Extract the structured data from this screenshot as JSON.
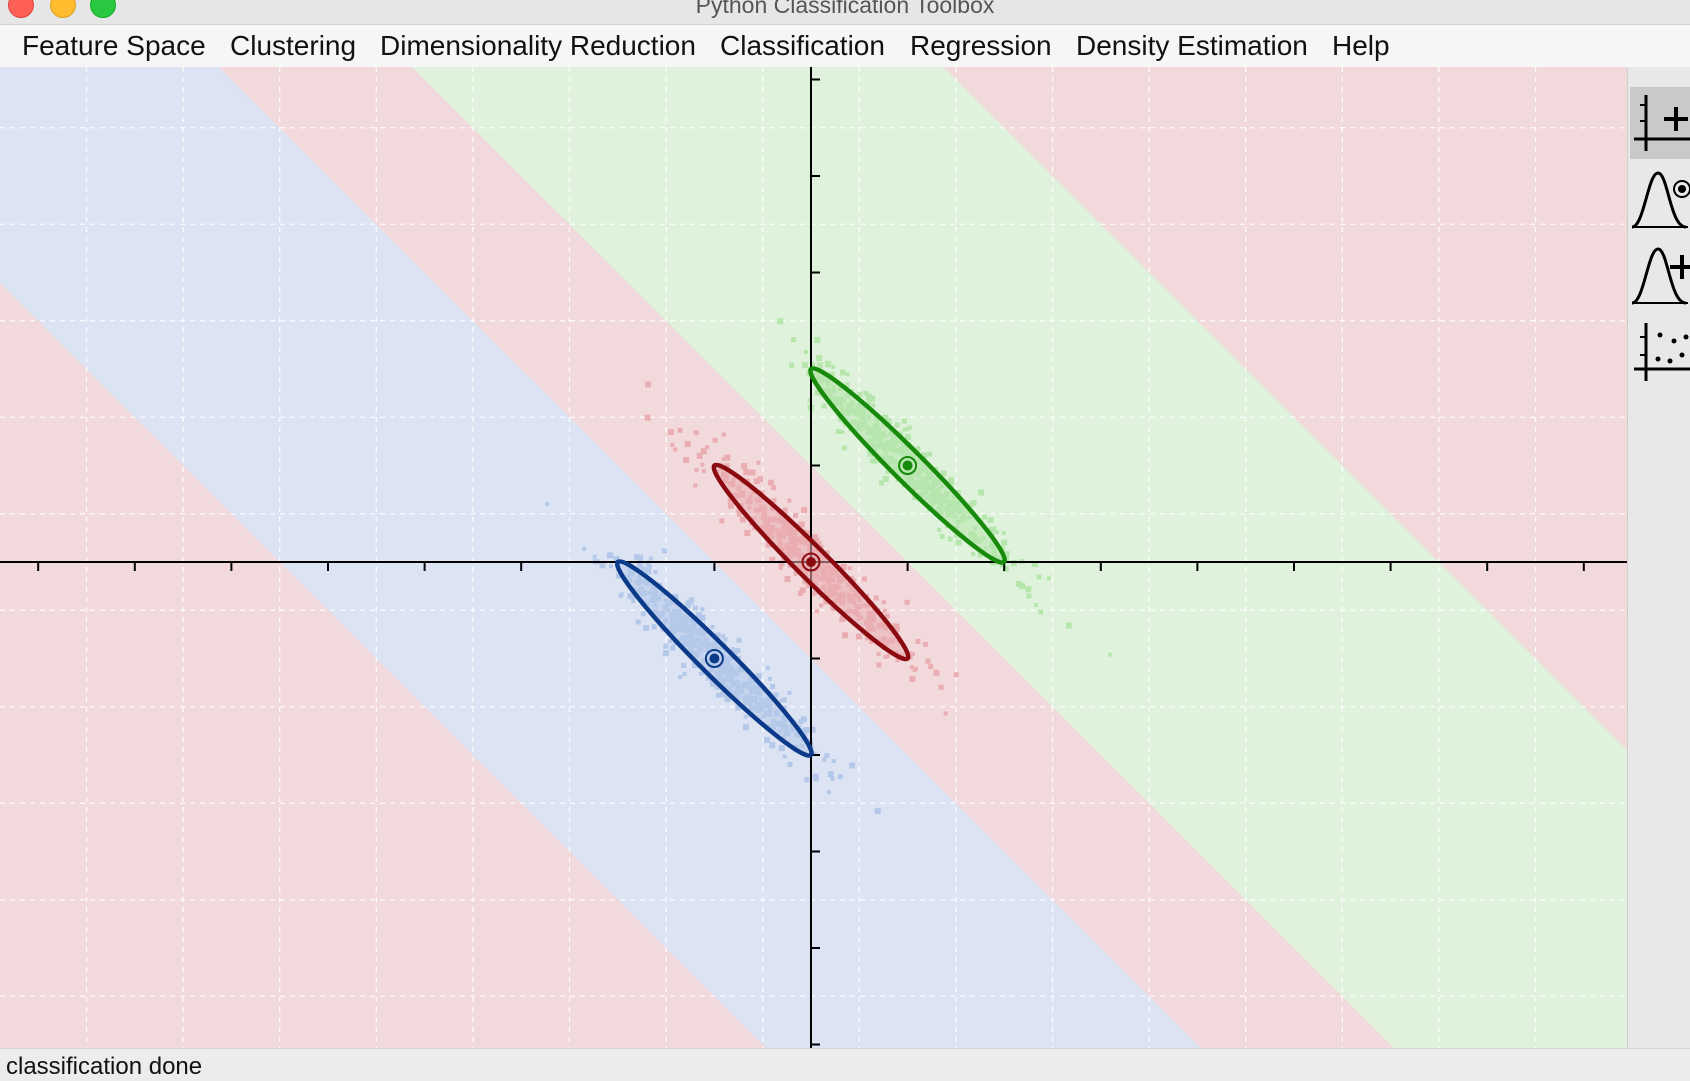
{
  "window": {
    "title": "Python Classification Toolbox"
  },
  "menu": [
    {
      "label": "Feature Space"
    },
    {
      "label": "Clustering"
    },
    {
      "label": "Dimensionality Reduction"
    },
    {
      "label": "Classification"
    },
    {
      "label": "Regression"
    },
    {
      "label": "Density Estimation"
    },
    {
      "label": "Help"
    }
  ],
  "toolbar": [
    {
      "icon": "add-point-icon",
      "active": true
    },
    {
      "icon": "gaussian-center-icon",
      "active": false
    },
    {
      "icon": "gaussian-add-icon",
      "active": false
    },
    {
      "icon": "scatter-points-icon",
      "active": false
    }
  ],
  "status": {
    "text": "classification done"
  },
  "colors": {
    "blue_region": "#dce3f2",
    "red_region": "#f2d9db",
    "green_region": "#dff2db",
    "blue_points": "#b4c8ea",
    "red_points": "#eaaeb2",
    "green_points": "#b7e6ad",
    "blue_ellipse": "#0b3a8a",
    "red_ellipse": "#8a0a0f",
    "green_ellipse": "#178a0b"
  },
  "chart_data": {
    "type": "scatter",
    "title": "",
    "xlabel": "",
    "ylabel": "",
    "xlim": [
      -8.5,
      8.5
    ],
    "ylim": [
      -5,
      5
    ],
    "grid": true,
    "x_ticks": [
      -8,
      -7,
      -6,
      -5,
      -4,
      -3,
      -2,
      -1,
      1,
      2,
      3,
      4,
      5,
      6,
      7,
      8
    ],
    "y_ticks": [
      -5,
      -4,
      -3,
      -2,
      -1,
      1,
      2,
      3,
      4,
      5
    ],
    "classes": [
      {
        "color_key": "blue",
        "mean": [
          -1,
          -1
        ],
        "ellipse_axis_ends": [
          [
            -2,
            0
          ],
          [
            0,
            -2
          ]
        ],
        "ellipse_semi_minor": 0.16
      },
      {
        "color_key": "red",
        "mean": [
          0,
          0
        ],
        "ellipse_axis_ends": [
          [
            -1,
            1
          ],
          [
            1,
            -1
          ]
        ],
        "ellipse_semi_minor": 0.16
      },
      {
        "color_key": "green",
        "mean": [
          1,
          1
        ],
        "ellipse_axis_ends": [
          [
            0,
            2
          ],
          [
            2,
            0
          ]
        ],
        "ellipse_semi_minor": 0.16
      }
    ],
    "decision_regions": [
      {
        "class": "red",
        "s_range": [
          null,
          -5.5
        ]
      },
      {
        "class": "blue",
        "s_range": [
          -5.5,
          -1
        ]
      },
      {
        "class": "red",
        "s_range": [
          -1,
          1
        ]
      },
      {
        "class": "green",
        "s_range": [
          1,
          6.5
        ]
      },
      {
        "class": "red",
        "s_range": [
          6.5,
          null
        ]
      }
    ]
  }
}
